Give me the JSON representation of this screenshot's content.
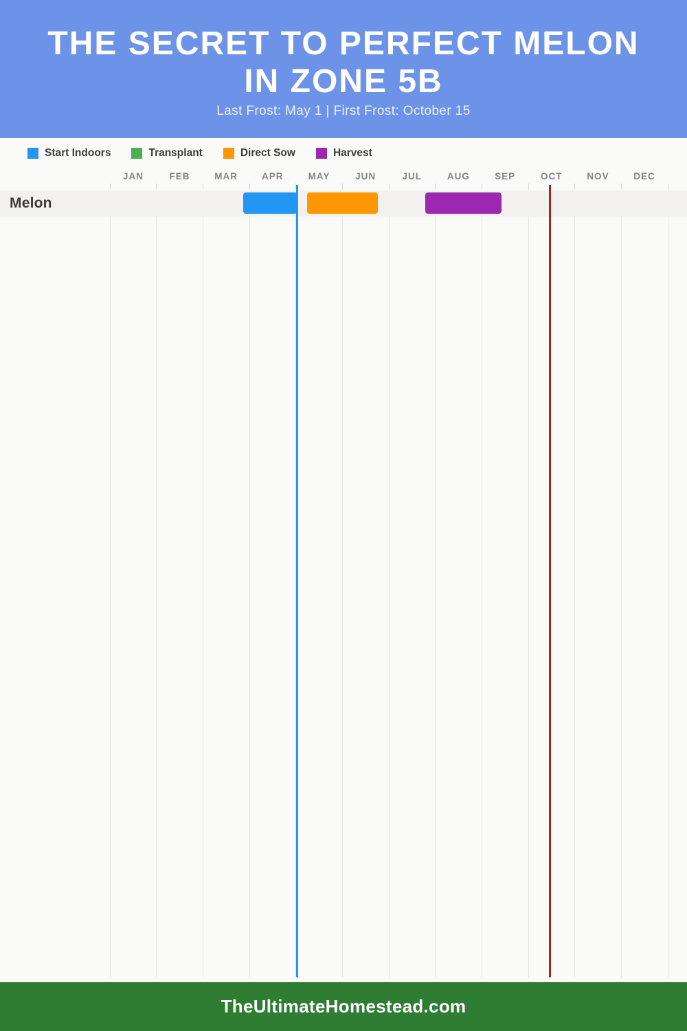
{
  "header": {
    "title": "THE SECRET TO PERFECT MELON IN ZONE 5B",
    "title_line1": "THE SECRET TO PERFECT MELON",
    "title_line2": "IN ZONE 5B",
    "subtitle": "Last Frost: May 1 | First Frost: October 15",
    "background_color": "#6C93E8"
  },
  "legend": {
    "items": [
      {
        "label": "Start Indoors",
        "color": "#2196F3"
      },
      {
        "label": "Transplant",
        "color": "#4CAF50"
      },
      {
        "label": "Direct Sow",
        "color": "#FF9800"
      },
      {
        "label": "Harvest",
        "color": "#9C27B0"
      }
    ]
  },
  "chart_data": {
    "type": "gantt",
    "title": "The Secret to Perfect Melon in Zone 5B",
    "months": [
      "JAN",
      "FEB",
      "MAR",
      "APR",
      "MAY",
      "JUN",
      "JUL",
      "AUG",
      "SEP",
      "OCT",
      "NOV",
      "DEC"
    ],
    "axis_range_months": [
      0,
      12
    ],
    "grid": true,
    "rows": [
      {
        "label": "Melon",
        "bars": [
          {
            "series": "Start Indoors",
            "start_month": 2.87,
            "end_month": 4.03,
            "color": "#2196F3"
          },
          {
            "series": "Direct Sow",
            "start_month": 4.24,
            "end_month": 5.76,
            "color": "#FF9800"
          },
          {
            "series": "Harvest",
            "start_month": 6.79,
            "end_month": 8.42,
            "color": "#9C27B0"
          }
        ]
      }
    ],
    "frost_lines": [
      {
        "name": "last-frost",
        "date": "May 1",
        "month_position": 4.03,
        "color": "#2196F3"
      },
      {
        "name": "first-frost",
        "date": "October 15",
        "month_position": 9.47,
        "color": "#A92222"
      }
    ]
  },
  "footer": {
    "website": "TheUltimateHomestead.com",
    "background_color": "#2E7D32"
  },
  "colors": {
    "page_background": "#FAFAF9",
    "row_band": "#F2F1EF",
    "gridline": "#E6E5E3",
    "tick": "#DBDAD8",
    "month_label": "#848484",
    "text_dark": "#3A3A3A"
  }
}
